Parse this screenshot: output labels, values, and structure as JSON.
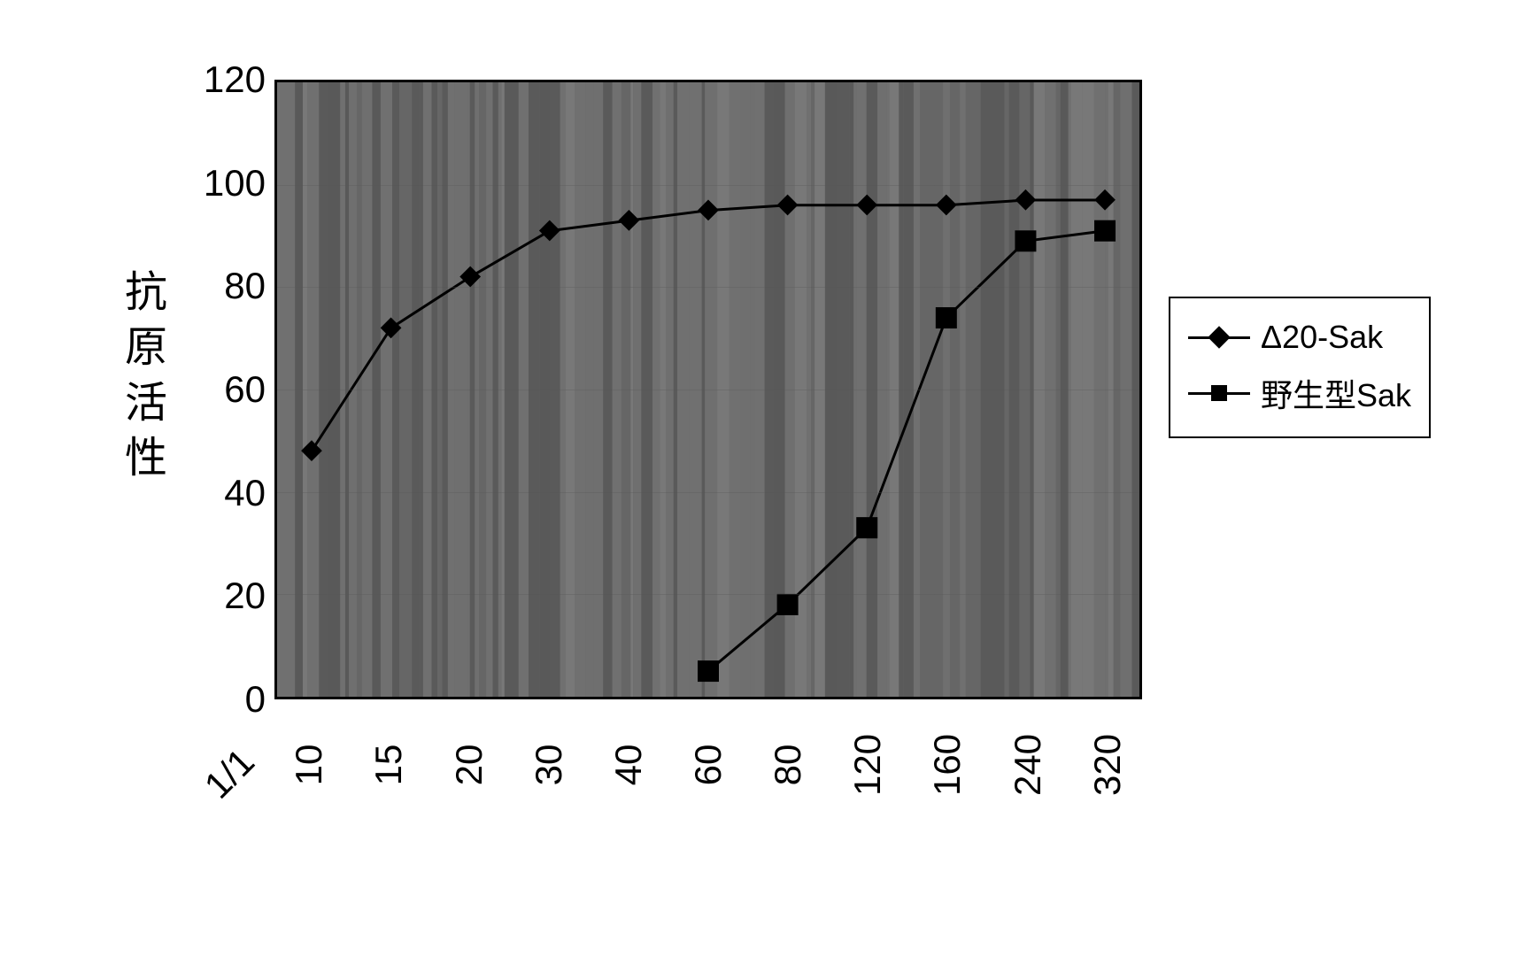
{
  "chart": {
    "type": "line",
    "y_axis_label": "抗原活性",
    "x_axis_prefix": "1/1",
    "x_categories": [
      "10",
      "15",
      "20",
      "30",
      "40",
      "60",
      "80",
      "120",
      "160",
      "240",
      "320"
    ],
    "ylim": [
      0,
      120
    ],
    "ytick_step": 20,
    "y_ticks": [
      0,
      20,
      40,
      60,
      80,
      100,
      120
    ],
    "series": [
      {
        "name": "Δ20-Sak",
        "marker": "diamond",
        "color": "#000000",
        "line_width": 3,
        "values": [
          48,
          72,
          82,
          91,
          93,
          95,
          96,
          96,
          96,
          97,
          97
        ]
      },
      {
        "name": "野生型Sak",
        "marker": "square",
        "color": "#000000",
        "line_width": 3,
        "values": [
          null,
          null,
          null,
          null,
          null,
          5,
          18,
          33,
          74,
          89,
          91
        ]
      }
    ],
    "plot_background": {
      "base_color": "#6a6a6a",
      "stripe_colors": [
        "#5a5a5a",
        "#6f6f6f",
        "#787878",
        "#666666",
        "#595959",
        "#707070"
      ]
    },
    "border_color": "#000000",
    "text_color": "#000000",
    "tick_fontsize": 42,
    "label_fontsize": 48,
    "legend_fontsize": 36,
    "marker_size": 18
  }
}
